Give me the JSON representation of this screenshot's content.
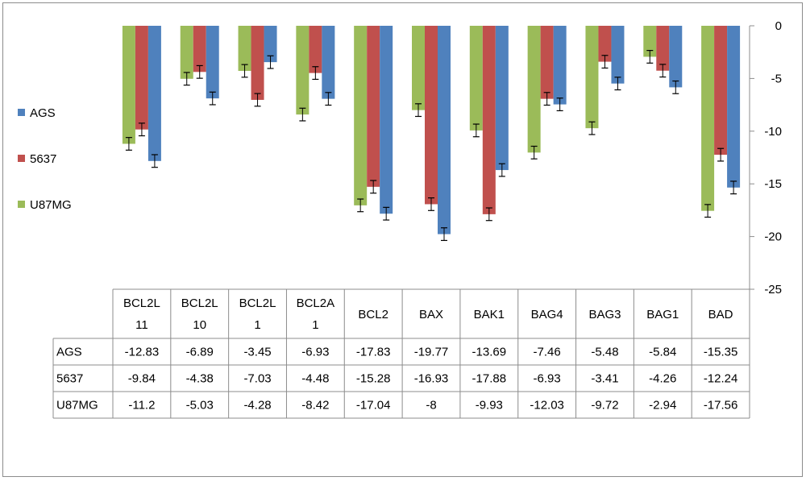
{
  "chart_data": {
    "type": "bar",
    "categories": [
      [
        "BCL2L",
        "11"
      ],
      [
        "BCL2L",
        "10"
      ],
      [
        "BCL2L",
        "1"
      ],
      [
        "BCL2A",
        "1"
      ],
      [
        "BCL2"
      ],
      [
        "BAX"
      ],
      [
        "BAK1"
      ],
      [
        "BAG4"
      ],
      [
        "BAG3"
      ],
      [
        "BAG1"
      ],
      [
        "BAD"
      ]
    ],
    "series": [
      {
        "name": "U87MG",
        "color": "#9bbb59",
        "values": [
          -11.2,
          -5.03,
          -4.28,
          -8.42,
          -17.04,
          -8,
          -9.93,
          -12.03,
          -9.72,
          -2.94,
          -17.56
        ],
        "labels": [
          "-11.2",
          "-5.03",
          "-4.28",
          "-8.42",
          "-17.04",
          "-8",
          "-9.93",
          "-12.03",
          "-9.72",
          "-2.94",
          "-17.56"
        ]
      },
      {
        "name": "5637",
        "color": "#c0504d",
        "values": [
          -9.84,
          -4.38,
          -7.03,
          -4.48,
          -15.28,
          -16.93,
          -17.88,
          -6.93,
          -3.41,
          -4.26,
          -12.24
        ],
        "labels": [
          "-9.84",
          "-4.38",
          "-7.03",
          "-4.48",
          "-15.28",
          "-16.93",
          "-17.88",
          "-6.93",
          "-3.41",
          "-4.26",
          "-12.24"
        ]
      },
      {
        "name": "AGS",
        "color": "#4f81bd",
        "values": [
          -12.83,
          -6.89,
          -3.45,
          -6.93,
          -17.83,
          -19.77,
          -13.69,
          -7.46,
          -5.48,
          -5.84,
          -15.35
        ],
        "labels": [
          "-12.83",
          "-6.89",
          "-3.45",
          "-6.93",
          "-17.83",
          "-19.77",
          "-13.69",
          "-7.46",
          "-5.48",
          "-5.84",
          "-15.35"
        ]
      }
    ],
    "error_bar": 0.6,
    "table_row_order": [
      "AGS",
      "5637",
      "U87MG"
    ],
    "legend_order": [
      "AGS",
      "5637",
      "U87MG"
    ],
    "legend_position": "left",
    "ylim": [
      -25,
      0
    ],
    "yticks": [
      0,
      -5,
      -10,
      -15,
      -20,
      -25
    ],
    "y_axis_side": "right",
    "gridlines": false,
    "data_table": true
  }
}
